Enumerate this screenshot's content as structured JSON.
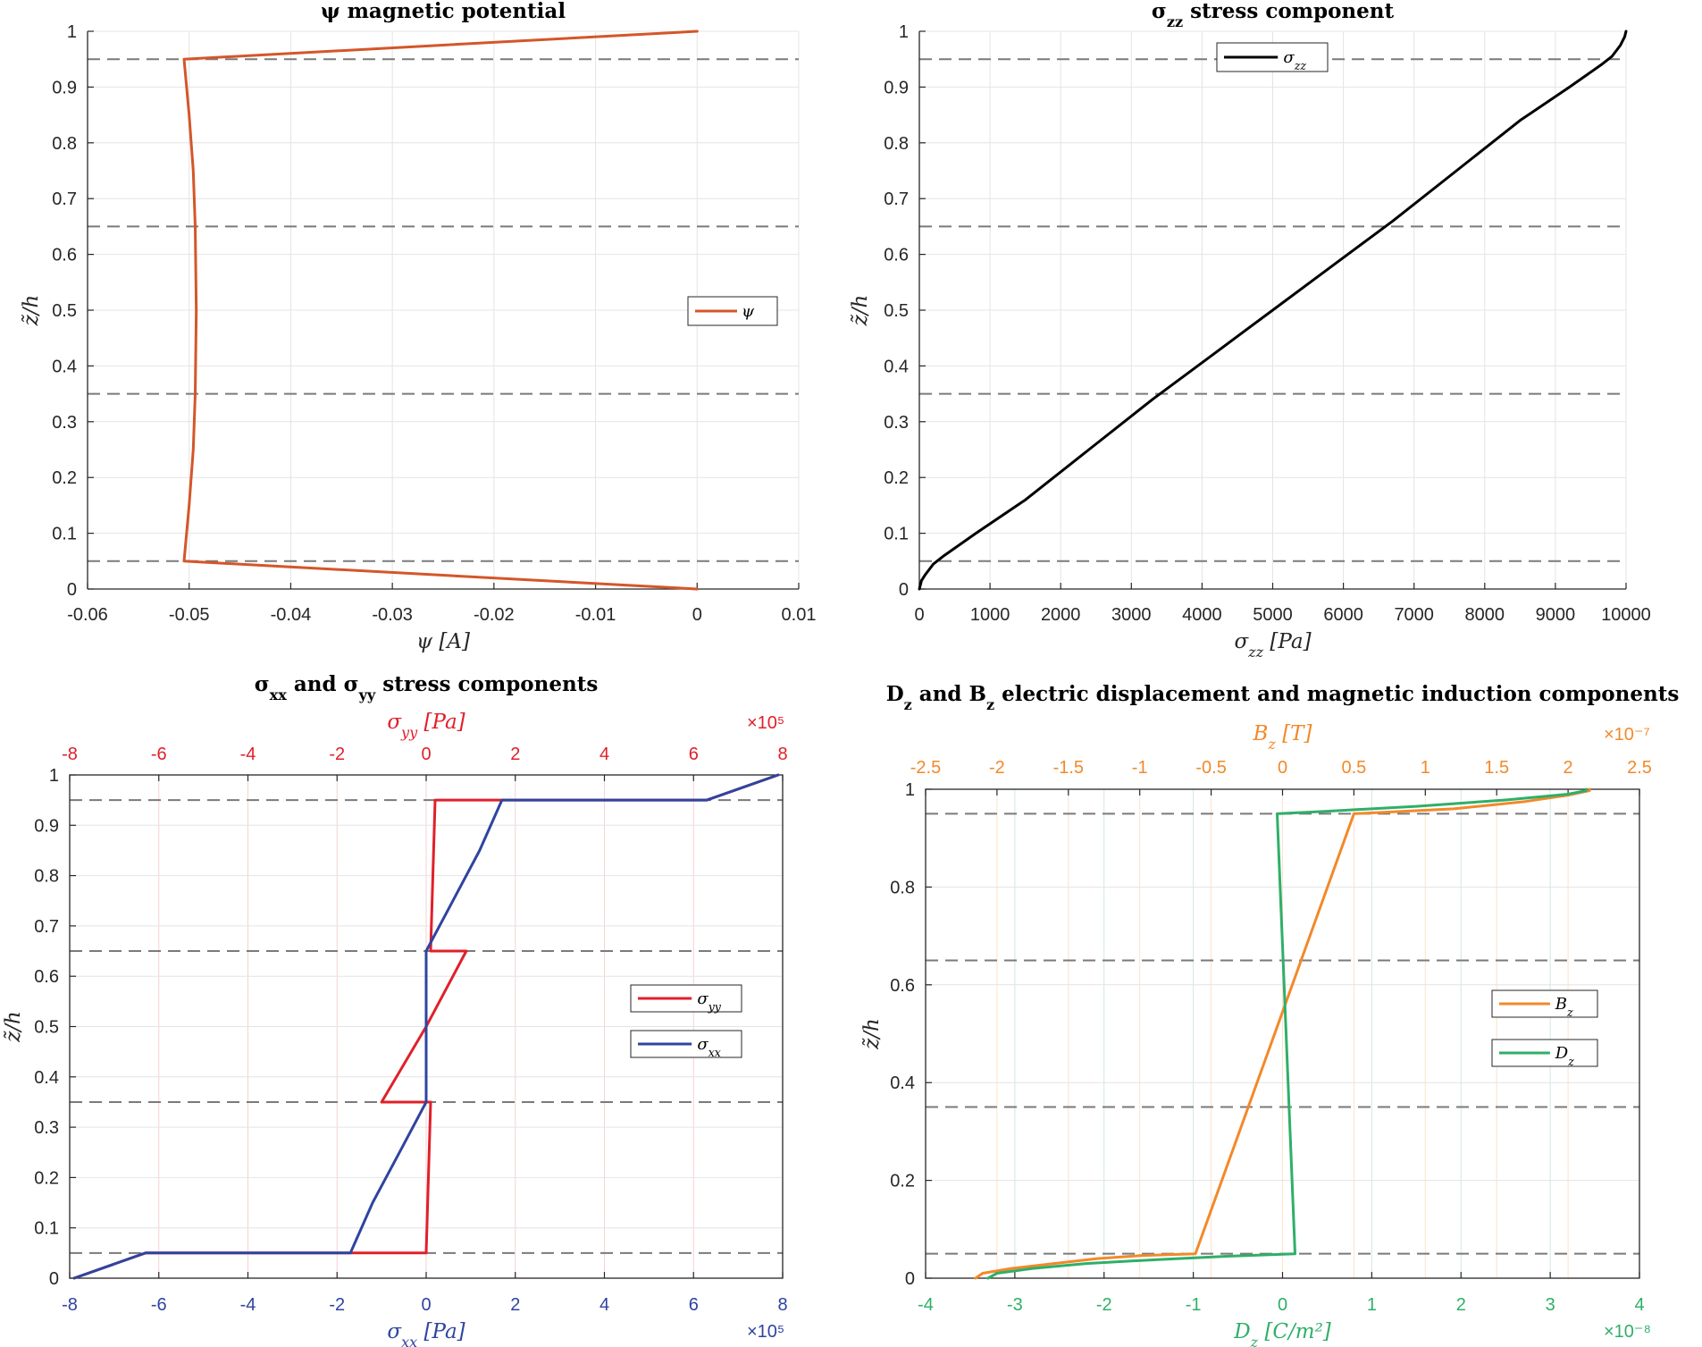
{
  "colors": {
    "psi": "#d4562a",
    "sigma_zz": "#000000",
    "sigma_yy": "#e0202a",
    "sigma_xx": "#2e44a0",
    "B_z": "#f2892a",
    "D_z": "#2faf68",
    "interface": "#7a7a7a",
    "grid": "#e4e4e4",
    "axis": "#262626"
  },
  "chart_data": [
    {
      "type": "line",
      "title": "ψ magnetic potential",
      "xlabel": "ψ [A]",
      "ylabel": "z̃/h",
      "xlim": [
        -0.06,
        0.01
      ],
      "ylim": [
        0,
        1
      ],
      "xticks": [
        -0.06,
        -0.05,
        -0.04,
        -0.03,
        -0.02,
        -0.01,
        0,
        0.01
      ],
      "xtick_labels": [
        "-0.06",
        "-0.05",
        "-0.04",
        "-0.03",
        "-0.02",
        "-0.01",
        "0",
        "0.01"
      ],
      "yticks": [
        0,
        0.1,
        0.2,
        0.3,
        0.4,
        0.5,
        0.6,
        0.7,
        0.8,
        0.9,
        1
      ],
      "ytick_labels": [
        "0",
        "0.1",
        "0.2",
        "0.3",
        "0.4",
        "0.5",
        "0.6",
        "0.7",
        "0.8",
        "0.9",
        "1"
      ],
      "grid": true,
      "legend_position": "right",
      "interfaces": [
        0.05,
        0.35,
        0.65,
        0.95
      ],
      "series": [
        {
          "name": "ψ",
          "x": [
            0,
            -0.0505,
            -0.05,
            -0.0496,
            -0.0494,
            -0.0493,
            -0.0494,
            -0.0496,
            -0.05,
            -0.0505,
            0
          ],
          "y": [
            0,
            0.05,
            0.15,
            0.25,
            0.35,
            0.5,
            0.65,
            0.75,
            0.85,
            0.95,
            1
          ]
        }
      ]
    },
    {
      "type": "line",
      "title": "σzz stress component",
      "xlabel": "σzz [Pa]",
      "ylabel": "z̃/h",
      "xlim": [
        0,
        10000
      ],
      "ylim": [
        0,
        1
      ],
      "xticks": [
        0,
        1000,
        2000,
        3000,
        4000,
        5000,
        6000,
        7000,
        8000,
        9000,
        10000
      ],
      "xtick_labels": [
        "0",
        "1000",
        "2000",
        "3000",
        "4000",
        "5000",
        "6000",
        "7000",
        "8000",
        "9000",
        "10000"
      ],
      "yticks": [
        0,
        0.1,
        0.2,
        0.3,
        0.4,
        0.5,
        0.6,
        0.7,
        0.8,
        0.9,
        1
      ],
      "ytick_labels": [
        "0",
        "0.1",
        "0.2",
        "0.3",
        "0.4",
        "0.5",
        "0.6",
        "0.7",
        "0.8",
        "0.9",
        "1"
      ],
      "grid": true,
      "legend_position": "top",
      "interfaces": [
        0.05,
        0.35,
        0.65,
        0.95
      ],
      "series": [
        {
          "name": "σzz",
          "x": [
            0,
            30,
            80,
            200,
            350,
            800,
            1500,
            2400,
            3300,
            4150,
            5000,
            5850,
            6700,
            7600,
            8500,
            9200,
            9650,
            9800,
            9920,
            9980,
            10000
          ],
          "y": [
            0,
            0.015,
            0.025,
            0.045,
            0.06,
            0.1,
            0.16,
            0.25,
            0.34,
            0.42,
            0.5,
            0.58,
            0.66,
            0.75,
            0.84,
            0.9,
            0.94,
            0.955,
            0.975,
            0.99,
            1
          ]
        }
      ]
    },
    {
      "type": "line",
      "title": "σxx and σyy stress components",
      "xlabel": "σxx [Pa]",
      "x2label": "σyy [Pa]",
      "ylabel": "z̃/h",
      "xlim": [
        -8,
        8
      ],
      "x2lim": [
        -8,
        8
      ],
      "x_multiplier": "×10⁵",
      "x2_multiplier": "×10⁵",
      "ylim": [
        0,
        1
      ],
      "xticks": [
        -8,
        -6,
        -4,
        -2,
        0,
        2,
        4,
        6,
        8
      ],
      "xtick_labels": [
        "-8",
        "-6",
        "-4",
        "-2",
        "0",
        "2",
        "4",
        "6",
        "8"
      ],
      "x2tick_labels": [
        "-8",
        "-6",
        "-4",
        "-2",
        "0",
        "2",
        "4",
        "6",
        "8"
      ],
      "yticks": [
        0,
        0.1,
        0.2,
        0.3,
        0.4,
        0.5,
        0.6,
        0.7,
        0.8,
        0.9,
        1
      ],
      "ytick_labels": [
        "0",
        "0.1",
        "0.2",
        "0.3",
        "0.4",
        "0.5",
        "0.6",
        "0.7",
        "0.8",
        "0.9",
        "1"
      ],
      "grid": true,
      "legend_position": "right",
      "interfaces": [
        0.05,
        0.35,
        0.65,
        0.95
      ],
      "series": [
        {
          "name": "σyy",
          "axis": "top",
          "x": [
            -7.9,
            -6.3,
            0,
            0.1,
            -1.0,
            0,
            0.9,
            0.1,
            0.2,
            6.3,
            7.9
          ],
          "y": [
            0,
            0.05,
            0.05,
            0.35,
            0.35,
            0.5,
            0.65,
            0.65,
            0.95,
            0.95,
            1
          ]
        },
        {
          "name": "σxx",
          "axis": "bottom",
          "x": [
            -7.9,
            -6.3,
            -1.7,
            -1.2,
            -0.6,
            0,
            0,
            0,
            0,
            0,
            0.6,
            1.2,
            1.7,
            6.3,
            7.9
          ],
          "y": [
            0,
            0.05,
            0.05,
            0.15,
            0.25,
            0.35,
            0.35,
            0.5,
            0.65,
            0.65,
            0.75,
            0.85,
            0.95,
            0.95,
            1
          ]
        }
      ]
    },
    {
      "type": "line",
      "title": "Dz and Bz electric displacement and magnetic induction components",
      "xlabel": "Dz [C/m²]",
      "x2label": "Bz [T]",
      "ylabel": "z̃/h",
      "xlim": [
        -4,
        4
      ],
      "x2lim": [
        -2.5,
        2.5
      ],
      "x_multiplier": "×10⁻⁸",
      "x2_multiplier": "×10⁻⁷",
      "ylim": [
        0,
        1
      ],
      "xticks": [
        -4,
        -3,
        -2,
        -1,
        0,
        1,
        2,
        3,
        4
      ],
      "xtick_labels": [
        "-4",
        "-3",
        "-2",
        "-1",
        "0",
        "1",
        "2",
        "3",
        "4"
      ],
      "x2ticks": [
        -2.5,
        -2,
        -1.5,
        -1,
        -0.5,
        0,
        0.5,
        1,
        1.5,
        2,
        2.5
      ],
      "x2tick_labels": [
        "-2.5",
        "-2",
        "-1.5",
        "-1",
        "-0.5",
        "0",
        "0.5",
        "1",
        "1.5",
        "2",
        "2.5"
      ],
      "yticks": [
        0,
        0.2,
        0.4,
        0.6,
        0.8,
        1
      ],
      "ytick_labels": [
        "0",
        "0.2",
        "0.4",
        "0.6",
        "0.8",
        "1"
      ],
      "grid": true,
      "legend_position": "right",
      "interfaces": [
        0.05,
        0.35,
        0.65,
        0.95
      ],
      "series": [
        {
          "name": "Bz",
          "axis": "top",
          "x": [
            -2.15,
            -2.1,
            -1.9,
            -1.6,
            -1.3,
            -1.0,
            -0.61,
            0.5,
            0.5,
            1.2,
            1.7,
            2.0,
            2.15,
            2.15
          ],
          "y": [
            0,
            0.01,
            0.02,
            0.03,
            0.04,
            0.046,
            0.05,
            0.95,
            0.95,
            0.96,
            0.975,
            0.988,
            0.997,
            1
          ]
        },
        {
          "name": "Dz",
          "axis": "bottom",
          "x": [
            -3.3,
            -3.2,
            -2.8,
            -2.2,
            -1.4,
            -0.6,
            0.14,
            -0.06,
            0.5,
            1.5,
            2.5,
            3.2,
            3.4,
            3.4
          ],
          "y": [
            0,
            0.01,
            0.02,
            0.03,
            0.038,
            0.045,
            0.05,
            0.95,
            0.955,
            0.965,
            0.978,
            0.99,
            0.997,
            1
          ]
        }
      ]
    }
  ]
}
